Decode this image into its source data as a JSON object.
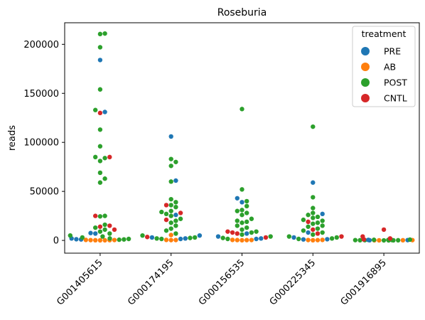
{
  "chart_data": {
    "type": "scatter",
    "subtype": "swarm",
    "title": "Roseburia",
    "xlabel": "",
    "ylabel": "reads",
    "categories": [
      "G001405615",
      "G000174195",
      "G000156535",
      "G000225345",
      "G001916895"
    ],
    "ylim": [
      -13000,
      222000
    ],
    "yticks": [
      0,
      50000,
      100000,
      150000,
      200000
    ],
    "ytick_labels": [
      "0",
      "50000",
      "100000",
      "150000",
      "200000"
    ],
    "grid": false,
    "legend": {
      "title": "treatment",
      "position": "top-right",
      "entries": [
        {
          "name": "PRE",
          "color": "#1f77b4"
        },
        {
          "name": "AB",
          "color": "#ff7f0e"
        },
        {
          "name": "POST",
          "color": "#2ca02c"
        },
        {
          "name": "CNTL",
          "color": "#d62728"
        }
      ]
    },
    "series": [
      {
        "name": "PRE",
        "color": "#1f77b4",
        "points": [
          [
            "G001405615",
            184000
          ],
          [
            "G001405615",
            131000
          ],
          [
            "G001405615",
            7000
          ],
          [
            "G001405615",
            7500
          ],
          [
            "G001405615",
            1000
          ],
          [
            "G001405615",
            2000
          ],
          [
            "G001405615",
            1200
          ],
          [
            "G000174195",
            106000
          ],
          [
            "G000174195",
            61000
          ],
          [
            "G000174195",
            26000
          ],
          [
            "G000174195",
            5000
          ],
          [
            "G000174195",
            3000
          ],
          [
            "G000174195",
            2000
          ],
          [
            "G000174195",
            1500
          ],
          [
            "G000156535",
            43000
          ],
          [
            "G000156535",
            39000
          ],
          [
            "G000156535",
            7000
          ],
          [
            "G000156535",
            4000
          ],
          [
            "G000156535",
            1500
          ],
          [
            "G000156535",
            2000
          ],
          [
            "G000225345",
            59000
          ],
          [
            "G000225345",
            27000
          ],
          [
            "G000225345",
            3000
          ],
          [
            "G000225345",
            8000
          ],
          [
            "G000225345",
            1200
          ],
          [
            "G000225345",
            1000
          ],
          [
            "G001916895",
            500
          ],
          [
            "G001916895",
            300
          ],
          [
            "G001916895",
            200
          ]
        ]
      },
      {
        "name": "AB",
        "color": "#ff7f0e",
        "points": [
          [
            "G001405615",
            500
          ],
          [
            "G001405615",
            400
          ],
          [
            "G001405615",
            300
          ],
          [
            "G001405615",
            200
          ],
          [
            "G001405615",
            150
          ],
          [
            "G001405615",
            100
          ],
          [
            "G001405615",
            250
          ],
          [
            "G000174195",
            500
          ],
          [
            "G000174195",
            400
          ],
          [
            "G000174195",
            300
          ],
          [
            "G000174195",
            5500
          ],
          [
            "G000156535",
            500
          ],
          [
            "G000156535",
            400
          ],
          [
            "G000156535",
            300
          ],
          [
            "G000156535",
            200
          ],
          [
            "G000156535",
            350
          ],
          [
            "G000225345",
            500
          ],
          [
            "G000225345",
            400
          ],
          [
            "G000225345",
            300
          ],
          [
            "G000225345",
            200
          ],
          [
            "G001916895",
            300
          ],
          [
            "G001916895",
            200
          ],
          [
            "G001916895",
            150
          ],
          [
            "G001916895",
            100
          ]
        ]
      },
      {
        "name": "POST",
        "color": "#2ca02c",
        "points": [
          [
            "G001405615",
            211000
          ],
          [
            "G001405615",
            210500
          ],
          [
            "G001405615",
            197000
          ],
          [
            "G001405615",
            154000
          ],
          [
            "G001405615",
            133000
          ],
          [
            "G001405615",
            113000
          ],
          [
            "G001405615",
            96000
          ],
          [
            "G001405615",
            85000
          ],
          [
            "G001405615",
            84000
          ],
          [
            "G001405615",
            81000
          ],
          [
            "G001405615",
            69000
          ],
          [
            "G001405615",
            63000
          ],
          [
            "G001405615",
            59000
          ],
          [
            "G001405615",
            25000
          ],
          [
            "G001405615",
            24500
          ],
          [
            "G001405615",
            16000
          ],
          [
            "G001405615",
            13000
          ],
          [
            "G001405615",
            11000
          ],
          [
            "G001405615",
            9000
          ],
          [
            "G001405615",
            7000
          ],
          [
            "G001405615",
            5000
          ],
          [
            "G001405615",
            4000
          ],
          [
            "G001405615",
            3000
          ],
          [
            "G001405615",
            2000
          ],
          [
            "G001405615",
            1500
          ],
          [
            "G001405615",
            1000
          ],
          [
            "G001405615",
            700
          ],
          [
            "G000174195",
            83000
          ],
          [
            "G000174195",
            80000
          ],
          [
            "G000174195",
            76000
          ],
          [
            "G000174195",
            60000
          ],
          [
            "G000174195",
            42000
          ],
          [
            "G000174195",
            39000
          ],
          [
            "G000174195",
            36000
          ],
          [
            "G000174195",
            34000
          ],
          [
            "G000174195",
            30000
          ],
          [
            "G000174195",
            29000
          ],
          [
            "G000174195",
            27000
          ],
          [
            "G000174195",
            25000
          ],
          [
            "G000174195",
            22000
          ],
          [
            "G000174195",
            20000
          ],
          [
            "G000174195",
            18000
          ],
          [
            "G000174195",
            15000
          ],
          [
            "G000174195",
            12000
          ],
          [
            "G000174195",
            10000
          ],
          [
            "G000174195",
            7000
          ],
          [
            "G000174195",
            5000
          ],
          [
            "G000174195",
            3000
          ],
          [
            "G000174195",
            2500
          ],
          [
            "G000174195",
            2000
          ],
          [
            "G000174195",
            1500
          ],
          [
            "G000156535",
            134000
          ],
          [
            "G000156535",
            52000
          ],
          [
            "G000156535",
            40000
          ],
          [
            "G000156535",
            35000
          ],
          [
            "G000156535",
            31000
          ],
          [
            "G000156535",
            30000
          ],
          [
            "G000156535",
            28000
          ],
          [
            "G000156535",
            26000
          ],
          [
            "G000156535",
            22000
          ],
          [
            "G000156535",
            20000
          ],
          [
            "G000156535",
            19000
          ],
          [
            "G000156535",
            18000
          ],
          [
            "G000156535",
            15000
          ],
          [
            "G000156535",
            13000
          ],
          [
            "G000156535",
            11000
          ],
          [
            "G000156535",
            9000
          ],
          [
            "G000156535",
            8000
          ],
          [
            "G000156535",
            6000
          ],
          [
            "G000156535",
            4000
          ],
          [
            "G000156535",
            2500
          ],
          [
            "G000156535",
            1500
          ],
          [
            "G000225345",
            116000
          ],
          [
            "G000225345",
            44000
          ],
          [
            "G000225345",
            33000
          ],
          [
            "G000225345",
            28000
          ],
          [
            "G000225345",
            26000
          ],
          [
            "G000225345",
            24000
          ],
          [
            "G000225345",
            23000
          ],
          [
            "G000225345",
            21000
          ],
          [
            "G000225345",
            20000
          ],
          [
            "G000225345",
            18000
          ],
          [
            "G000225345",
            17000
          ],
          [
            "G000225345",
            15000
          ],
          [
            "G000225345",
            14000
          ],
          [
            "G000225345",
            12000
          ],
          [
            "G000225345",
            10000
          ],
          [
            "G000225345",
            8000
          ],
          [
            "G000225345",
            6000
          ],
          [
            "G000225345",
            4000
          ],
          [
            "G000225345",
            3000
          ],
          [
            "G000225345",
            2000
          ],
          [
            "G000225345",
            1500
          ],
          [
            "G001916895",
            800
          ],
          [
            "G001916895",
            600
          ],
          [
            "G001916895",
            500
          ],
          [
            "G001916895",
            400
          ],
          [
            "G001916895",
            300
          ],
          [
            "G001916895",
            250
          ],
          [
            "G001916895",
            200
          ],
          [
            "G001916895",
            150
          ],
          [
            "G001916895",
            100
          ],
          [
            "G001916895",
            50
          ],
          [
            "G001916895",
            30
          ]
        ]
      },
      {
        "name": "CNTL",
        "color": "#d62728",
        "points": [
          [
            "G001405615",
            130000
          ],
          [
            "G001405615",
            85000
          ],
          [
            "G001405615",
            25000
          ],
          [
            "G001405615",
            15000
          ],
          [
            "G001405615",
            14000
          ],
          [
            "G001405615",
            11000
          ],
          [
            "G000174195",
            36000
          ],
          [
            "G000174195",
            28000
          ],
          [
            "G000174195",
            21000
          ],
          [
            "G000174195",
            3500
          ],
          [
            "G000156535",
            9000
          ],
          [
            "G000156535",
            8000
          ],
          [
            "G000156535",
            7000
          ],
          [
            "G000156535",
            3000
          ],
          [
            "G000225345",
            19000
          ],
          [
            "G000225345",
            11000
          ],
          [
            "G000225345",
            7000
          ],
          [
            "G000225345",
            4000
          ],
          [
            "G001916895",
            11000
          ],
          [
            "G001916895",
            4000
          ],
          [
            "G001916895",
            2000
          ],
          [
            "G001916895",
            1000
          ]
        ]
      }
    ]
  }
}
